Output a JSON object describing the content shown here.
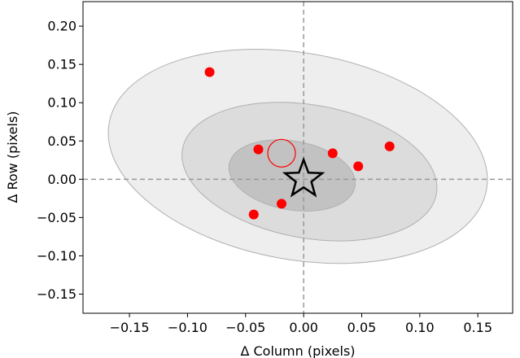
{
  "chart_data": {
    "type": "scatter",
    "title": "",
    "xlabel": "Δ Column (pixels)",
    "ylabel": "Δ Row (pixels)",
    "xlim": [
      -0.19,
      0.18
    ],
    "ylim": [
      -0.175,
      0.232
    ],
    "xticks": [
      -0.15,
      -0.1,
      -0.05,
      0.0,
      0.05,
      0.1,
      0.15
    ],
    "xtick_labels": [
      "−0.15",
      "−0.10",
      "−0.05",
      "0.00",
      "0.05",
      "0.10",
      "0.15"
    ],
    "yticks": [
      -0.15,
      -0.1,
      -0.05,
      0.0,
      0.05,
      0.1,
      0.15,
      0.2
    ],
    "ytick_labels": [
      "−0.15",
      "−0.10",
      "−0.05",
      "0.00",
      "0.05",
      "0.10",
      "0.15",
      "0.20"
    ],
    "reference_lines": {
      "x": 0.0,
      "y": 0.0,
      "style": "dashed",
      "color": "#999999"
    },
    "ellipses": [
      {
        "level": "outer",
        "cx": -0.005,
        "cy": 0.03,
        "rx": 0.165,
        "ry": 0.135,
        "angle_deg": -10,
        "fill": "#ebebeb"
      },
      {
        "level": "middle",
        "cx": 0.005,
        "cy": 0.01,
        "rx": 0.111,
        "ry": 0.087,
        "angle_deg": -10,
        "fill": "#d8d8d8"
      },
      {
        "level": "inner",
        "cx": -0.01,
        "cy": 0.005,
        "rx": 0.055,
        "ry": 0.045,
        "angle_deg": -10,
        "fill": "#bdbdbd"
      }
    ],
    "series": [
      {
        "marker": "circle-filled",
        "color": "#ff0000",
        "points": [
          {
            "x": -0.081,
            "y": 0.14
          },
          {
            "x": -0.039,
            "y": 0.039
          },
          {
            "x": 0.025,
            "y": 0.034
          },
          {
            "x": 0.047,
            "y": 0.017
          },
          {
            "x": 0.074,
            "y": 0.043
          },
          {
            "x": -0.043,
            "y": -0.046
          },
          {
            "x": -0.019,
            "y": -0.032
          }
        ]
      }
    ],
    "mean_marker": {
      "x": -0.019,
      "y": 0.034,
      "marker": "circle-open",
      "color": "#ff0000"
    },
    "origin_marker": {
      "x": 0.0,
      "y": 0.0,
      "marker": "star-open",
      "color": "#000000"
    }
  }
}
